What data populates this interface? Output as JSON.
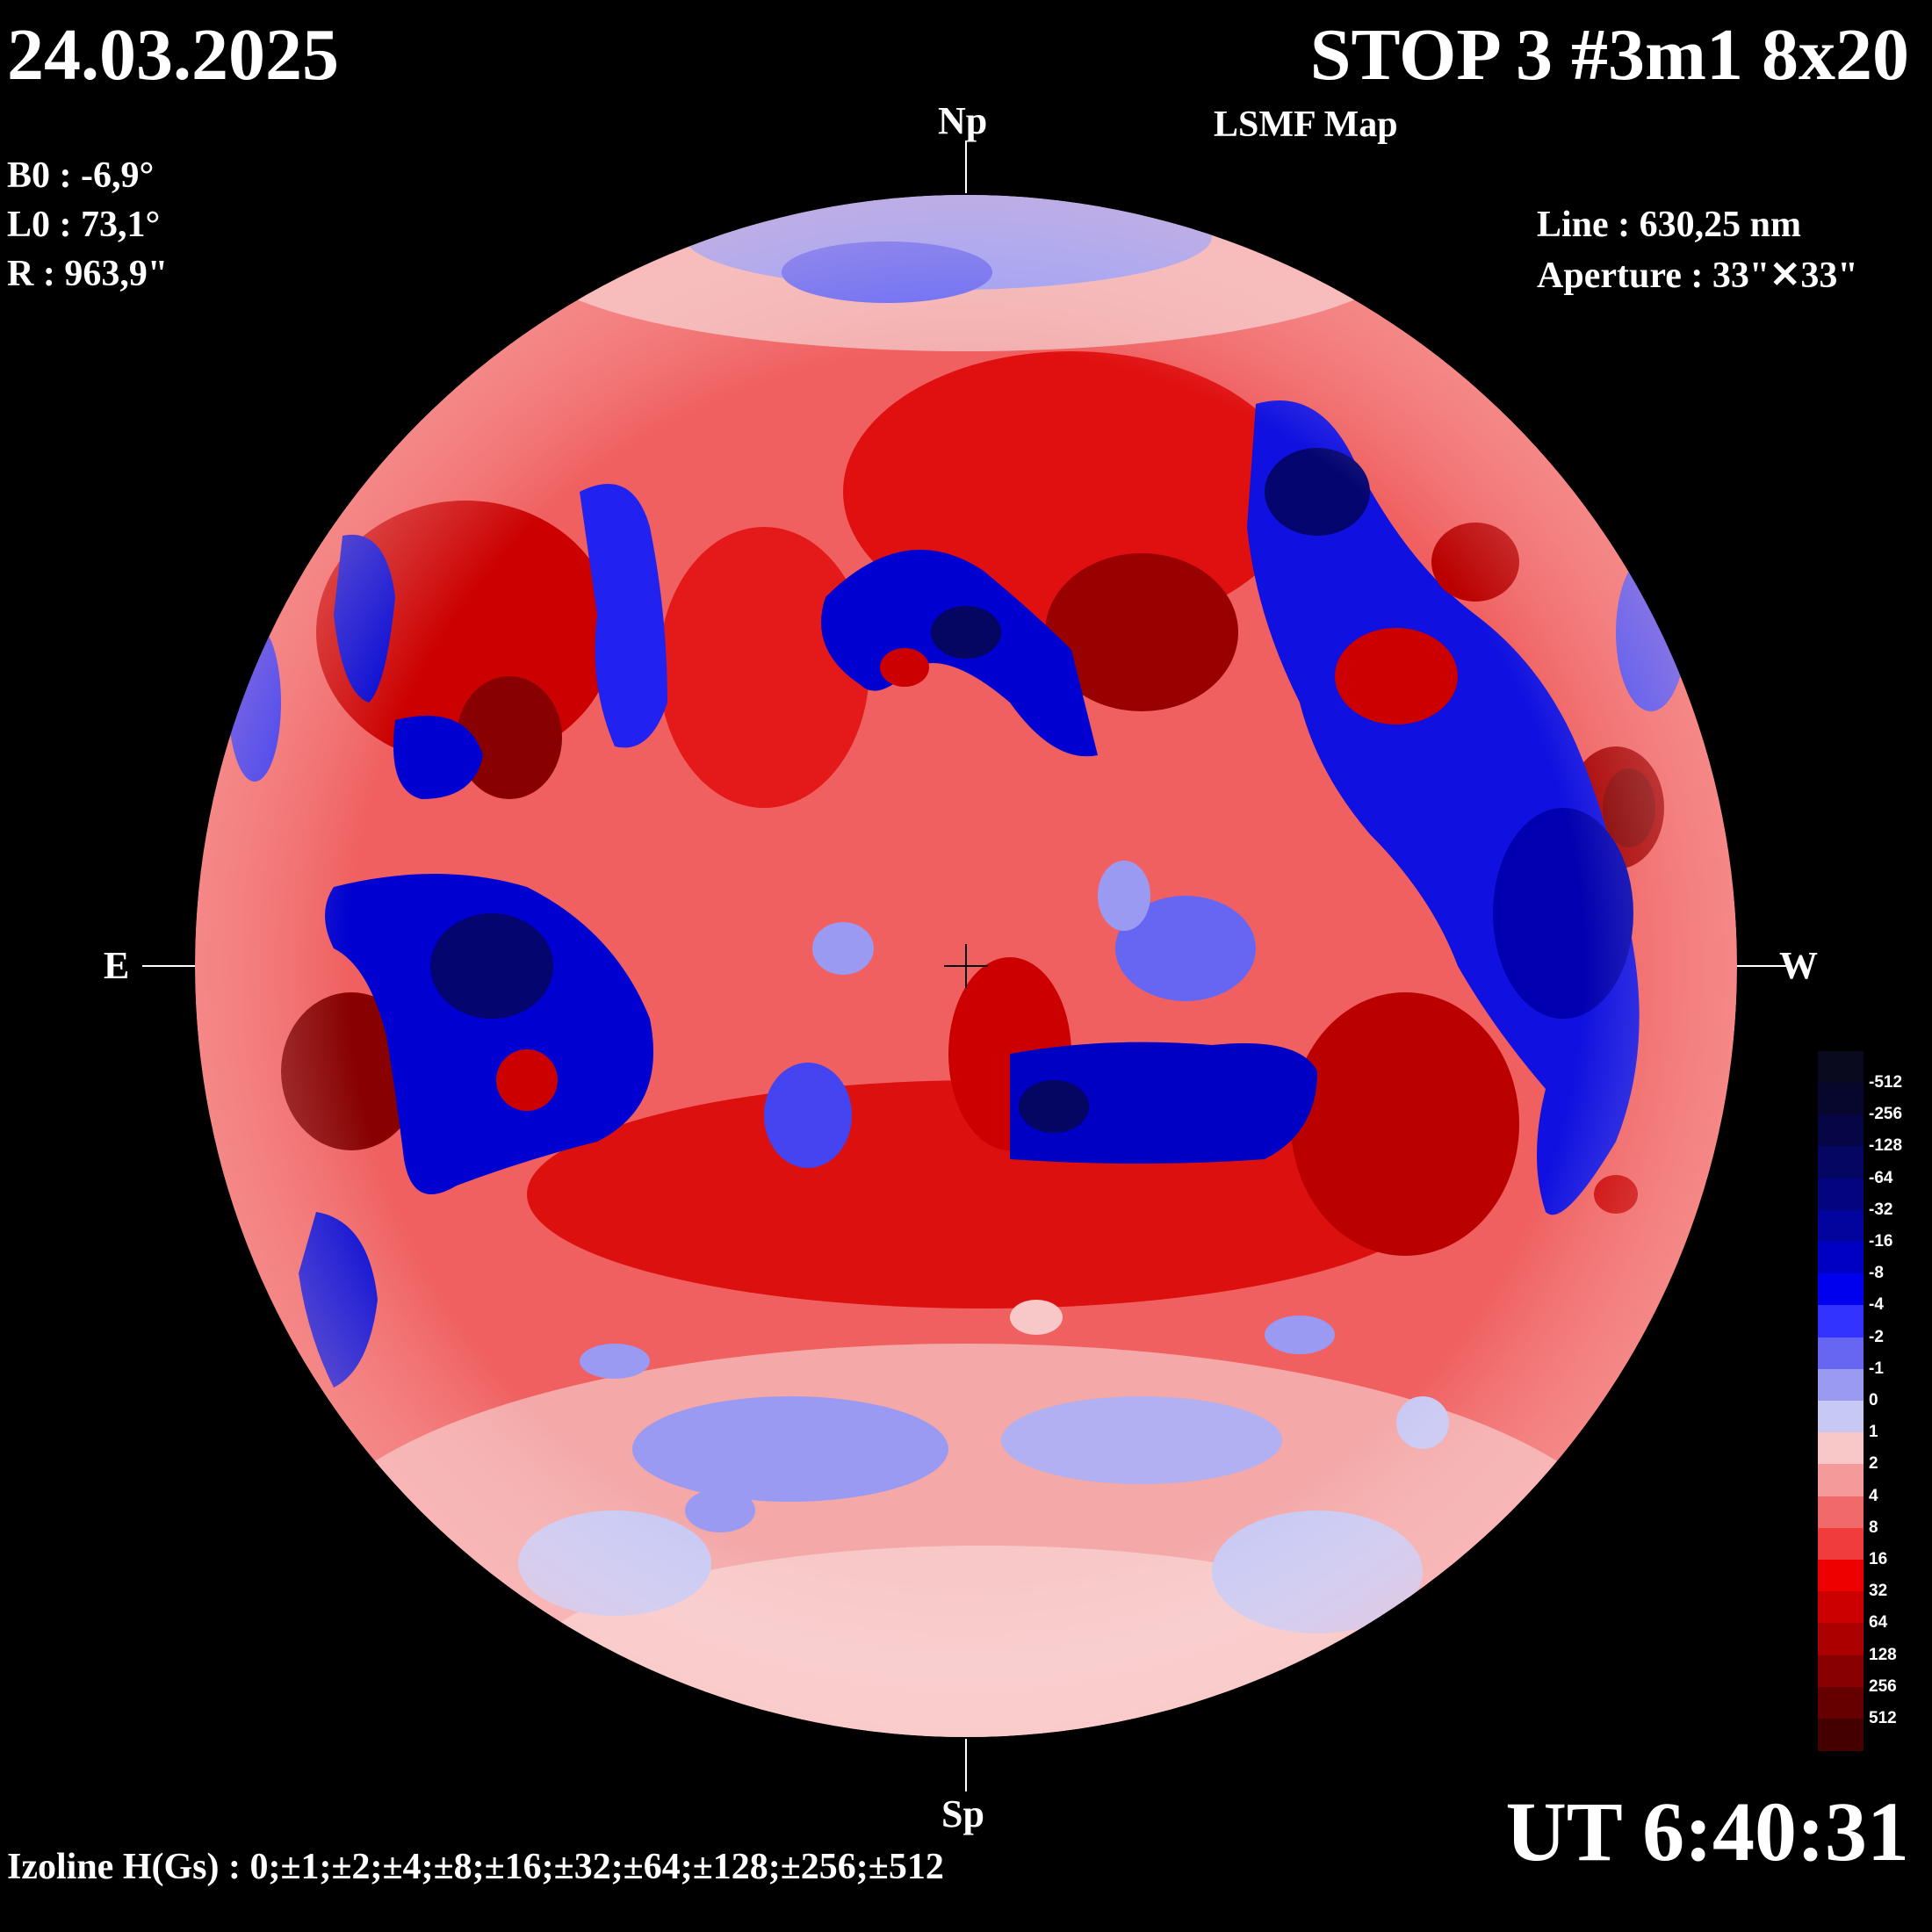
{
  "header": {
    "date": "24.03.2025",
    "title": "STOP 3 #3m1 8x20",
    "subtitle": "LSMF  Map"
  },
  "params": {
    "b0": "B0 : -6,9°",
    "l0": "L0 : 73,1°",
    "r": "R  : 963,9\""
  },
  "observation": {
    "line": "Line :  630,25 nm",
    "aperture": "Aperture : 33\"✕33\""
  },
  "directions": {
    "north": "Np",
    "south": "Sp",
    "east": "E",
    "west": "W"
  },
  "time": "UT 6:40:31",
  "izoline": "Izoline H(Gs) : 0;±1;±2;±4;±8;±16;±32;±64;±128;±256;±512",
  "legend": {
    "levels": [
      "-512",
      "-256",
      "-128",
      "-64",
      "-32",
      "-16",
      "-8",
      "-4",
      "-2",
      "-1",
      "0",
      "1",
      "2",
      "4",
      "8",
      "16",
      "32",
      "64",
      "128",
      "256",
      "512"
    ],
    "colors": [
      "#07072e",
      "#060646",
      "#050562",
      "#040480",
      "#03039e",
      "#0000c4",
      "#0000ee",
      "#3333ff",
      "#6666f2",
      "#9a9af2",
      "#c8c8f4",
      "#f8c8c8",
      "#f49a9a",
      "#f06a6a",
      "#f03c3c",
      "#ee0000",
      "#cc0000",
      "#aa0000",
      "#880000",
      "#660000",
      "#440000"
    ],
    "top_color": "#0a0a1e"
  },
  "colors": {
    "disk_pos": "#ee2020",
    "disk_neg": "#1414dc",
    "background": "#000000"
  }
}
